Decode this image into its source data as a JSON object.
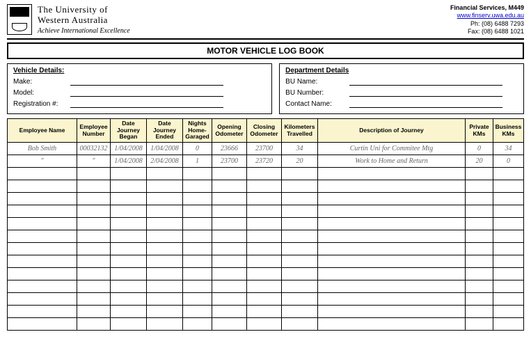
{
  "header": {
    "uni_line1": "The University of",
    "uni_line2": "Western Australia",
    "tagline": "Achieve International Excellence",
    "contact_title": "Financial Services, M449",
    "contact_url": "www.finserv.uwa.edu.au",
    "contact_phone": "Ph:  (08) 6488 7293",
    "contact_fax": "Fax: (08) 6488 1021"
  },
  "title": "MOTOR VEHICLE LOG BOOK",
  "vehicle": {
    "heading": "Vehicle Details:",
    "make_label": "Make:",
    "model_label": "Model:",
    "reg_label": "Registration #:"
  },
  "department": {
    "heading": "Department Details",
    "bu_name_label": "BU Name:",
    "bu_number_label": "BU Number:",
    "contact_name_label": "Contact Name:"
  },
  "columns": {
    "name": "Employee Name",
    "emp": "Employee Number",
    "began": "Date Journey Began",
    "ended": "Date Journey Ended",
    "nights": "Nights Home-Garaged",
    "oopen": "Opening Odometer",
    "oclose": "Closing Odometer",
    "km": "Kilometers Travelled",
    "desc": "Description of Journey",
    "priv": "Private KMs",
    "bus": "Business KMs"
  },
  "rows": [
    {
      "name": "Bob Smith",
      "emp": "00032132",
      "began": "1/04/2008",
      "ended": "1/04/2008",
      "nights": "0",
      "oopen": "23666",
      "oclose": "23700",
      "km": "34",
      "desc": "Curtin Uni for Commitee Mtg",
      "priv": "0",
      "bus": "34"
    },
    {
      "name": "\"",
      "emp": "\"",
      "began": "1/04/2008",
      "ended": "2/04/2008",
      "nights": "1",
      "oopen": "23700",
      "oclose": "23720",
      "km": "20",
      "desc": "Work to Home and Return",
      "priv": "20",
      "bus": "0"
    }
  ],
  "empty_row_count": 13,
  "colors": {
    "header_bg": "#faf5ce",
    "entry_text": "#666666"
  }
}
